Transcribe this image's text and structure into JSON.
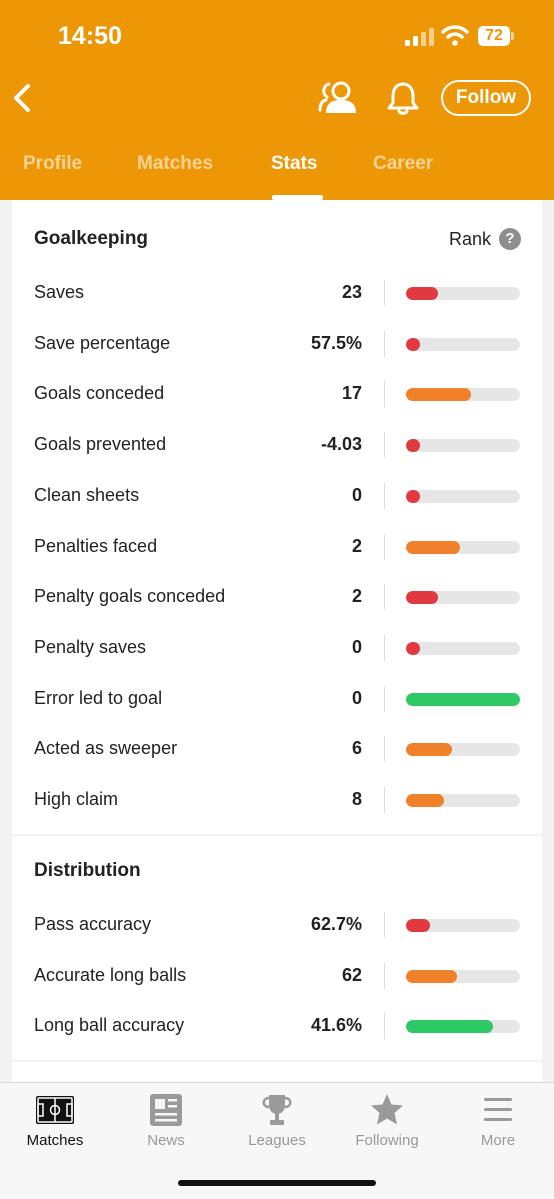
{
  "status_bar": {
    "time": "14:50",
    "battery": "72"
  },
  "header": {
    "follow_label": "Follow",
    "tabs": [
      {
        "label": "Profile",
        "active": false
      },
      {
        "label": "Matches",
        "active": false
      },
      {
        "label": "Stats",
        "active": true
      },
      {
        "label": "Career",
        "active": false
      }
    ]
  },
  "colors": {
    "header_bg": "#ee9706",
    "bar_red": "#e0393e",
    "bar_orange": "#f0802a",
    "bar_green": "#2ec866",
    "bar_track": "#e6e6e6"
  },
  "goalkeeping": {
    "title": "Goalkeeping",
    "rank_label": "Rank",
    "rank_help": "?",
    "rows": [
      {
        "label": "Saves",
        "value": "23",
        "fill": 0.28,
        "color": "red"
      },
      {
        "label": "Save percentage",
        "value": "57.5%",
        "fill": 0.12,
        "color": "red"
      },
      {
        "label": "Goals conceded",
        "value": "17",
        "fill": 0.57,
        "color": "orange"
      },
      {
        "label": "Goals prevented",
        "value": "-4.03",
        "fill": 0.12,
        "color": "red"
      },
      {
        "label": "Clean sheets",
        "value": "0",
        "fill": 0.12,
        "color": "red"
      },
      {
        "label": "Penalties faced",
        "value": "2",
        "fill": 0.47,
        "color": "orange"
      },
      {
        "label": "Penalty goals conceded",
        "value": "2",
        "fill": 0.28,
        "color": "red"
      },
      {
        "label": "Penalty saves",
        "value": "0",
        "fill": 0.12,
        "color": "red"
      },
      {
        "label": "Error led to goal",
        "value": "0",
        "fill": 1.0,
        "color": "green"
      },
      {
        "label": "Acted as sweeper",
        "value": "6",
        "fill": 0.4,
        "color": "orange"
      },
      {
        "label": "High claim",
        "value": "8",
        "fill": 0.33,
        "color": "orange"
      }
    ]
  },
  "distribution": {
    "title": "Distribution",
    "rows": [
      {
        "label": "Pass accuracy",
        "value": "62.7%",
        "fill": 0.21,
        "color": "red"
      },
      {
        "label": "Accurate long balls",
        "value": "62",
        "fill": 0.45,
        "color": "orange"
      },
      {
        "label": "Long ball accuracy",
        "value": "41.6%",
        "fill": 0.76,
        "color": "green"
      }
    ]
  },
  "bottom_nav": [
    {
      "label": "Matches",
      "icon": "pitch-icon",
      "active": true
    },
    {
      "label": "News",
      "icon": "newspaper-icon",
      "active": false
    },
    {
      "label": "Leagues",
      "icon": "trophy-icon",
      "active": false
    },
    {
      "label": "Following",
      "icon": "star-icon",
      "active": false
    },
    {
      "label": "More",
      "icon": "menu-icon",
      "active": false
    }
  ]
}
